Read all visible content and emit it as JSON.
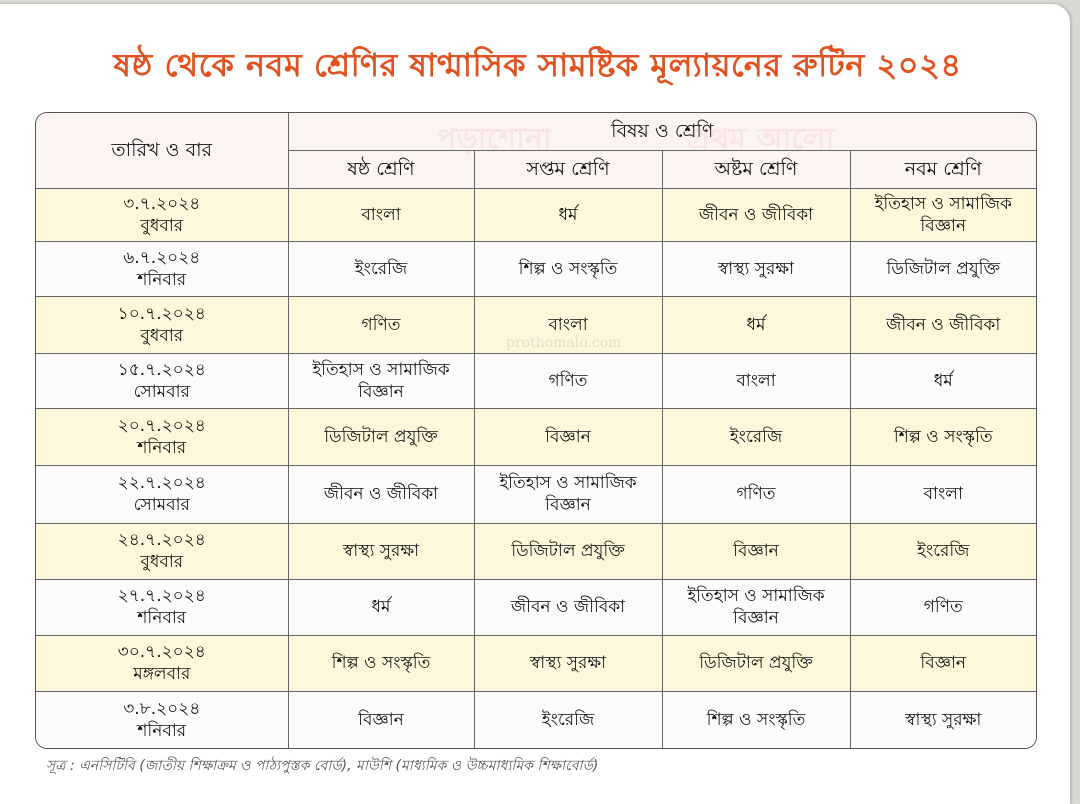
{
  "title": "ষষ্ঠ থেকে নবম শ্রেণির ষাণ্মাসিক সামষ্টিক মূল্যায়নের রুটিন ২০২৪",
  "watermark": {
    "logo": "পড়াশোনা প্রথম আলো",
    "site": "prothomalo.com"
  },
  "table": {
    "date_header": "তারিখ ও বার",
    "group_header": "বিষয় ও শ্রেণি",
    "class_headers": [
      "ষষ্ঠ শ্রেণি",
      "সপ্তম শ্রেণি",
      "অষ্টম শ্রেণি",
      "নবম শ্রেণি"
    ],
    "rows": [
      {
        "date": "৩.৭.২০২৪",
        "day": "বুধবার",
        "cells": [
          "বাংলা",
          "ধর্ম",
          "জীবন ও জীবিকা",
          "ইতিহাস ও সামাজিক বিজ্ঞান"
        ]
      },
      {
        "date": "৬.৭.২০২৪",
        "day": "শনিবার",
        "cells": [
          "ইংরেজি",
          "শিল্প ও সংস্কৃতি",
          "স্বাস্থ্য সুরক্ষা",
          "ডিজিটাল প্রযুক্তি"
        ]
      },
      {
        "date": "১০.৭.২০২৪",
        "day": "বুধবার",
        "cells": [
          "গণিত",
          "বাংলা",
          "ধর্ম",
          "জীবন ও জীবিকা"
        ]
      },
      {
        "date": "১৫.৭.২০২৪",
        "day": "সোমবার",
        "cells": [
          "ইতিহাস ও সামাজিক বিজ্ঞান",
          "গণিত",
          "বাংলা",
          "ধর্ম"
        ]
      },
      {
        "date": "২০.৭.২০২৪",
        "day": "শনিবার",
        "cells": [
          "ডিজিটাল প্রযুক্তি",
          "বিজ্ঞান",
          "ইংরেজি",
          "শিল্প ও সংস্কৃতি"
        ]
      },
      {
        "date": "২২.৭.২০২৪",
        "day": "সোমবার",
        "cells": [
          "জীবন ও জীবিকা",
          "ইতিহাস ও সামাজিক বিজ্ঞান",
          "গণিত",
          "বাংলা"
        ]
      },
      {
        "date": "২৪.৭.২০২৪",
        "day": "বুধবার",
        "cells": [
          "স্বাস্থ্য সুরক্ষা",
          "ডিজিটাল প্রযুক্তি",
          "বিজ্ঞান",
          "ইংরেজি"
        ]
      },
      {
        "date": "২৭.৭.২০২৪",
        "day": "শনিবার",
        "cells": [
          "ধর্ম",
          "জীবন ও জীবিকা",
          "ইতিহাস ও সামাজিক বিজ্ঞান",
          "গণিত"
        ]
      },
      {
        "date": "৩০.৭.২০২৪",
        "day": "মঙ্গলবার",
        "cells": [
          "শিল্প ও সংস্কৃতি",
          "স্বাস্থ্য সুরক্ষা",
          "ডিজিটাল প্রযুক্তি",
          "বিজ্ঞান"
        ]
      },
      {
        "date": "৩.৮.২০২৪",
        "day": "শনিবার",
        "cells": [
          "বিজ্ঞান",
          "ইংরেজি",
          "শিল্প ও সংস্কৃতি",
          "স্বাস্থ্য সুরক্ষা"
        ]
      }
    ]
  },
  "source": "সূত্র : এনসিটিবি (জাতীয় শিক্ষাক্রম ও পাঠ্যপুস্তক বোর্ড), মাউশি (মাধ্যমিক ও উচ্চমাধ্যমিক শিক্ষাবোর্ড)",
  "colors": {
    "title": "#e0521f",
    "row_odd": "#fdf8dc",
    "row_even": "#fdfafa",
    "header": "#fbf4f3"
  }
}
